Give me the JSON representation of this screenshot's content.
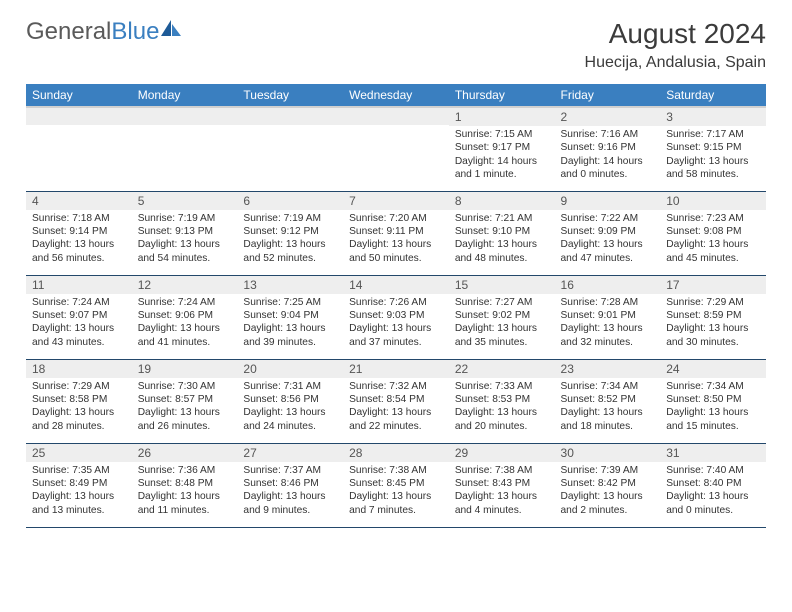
{
  "logo": {
    "part1": "General",
    "part2": "Blue"
  },
  "title": "August 2024",
  "location": "Huecija, Andalusia, Spain",
  "day_headers": [
    "Sunday",
    "Monday",
    "Tuesday",
    "Wednesday",
    "Thursday",
    "Friday",
    "Saturday"
  ],
  "colors": {
    "header_bg": "#3a7fc0",
    "header_fg": "#ffffff",
    "daynum_bg": "#eeeeee",
    "row_border": "#23486b",
    "text": "#333333"
  },
  "weeks": [
    [
      null,
      null,
      null,
      null,
      {
        "num": "1",
        "sunrise": "Sunrise: 7:15 AM",
        "sunset": "Sunset: 9:17 PM",
        "daylight": "Daylight: 14 hours and 1 minute."
      },
      {
        "num": "2",
        "sunrise": "Sunrise: 7:16 AM",
        "sunset": "Sunset: 9:16 PM",
        "daylight": "Daylight: 14 hours and 0 minutes."
      },
      {
        "num": "3",
        "sunrise": "Sunrise: 7:17 AM",
        "sunset": "Sunset: 9:15 PM",
        "daylight": "Daylight: 13 hours and 58 minutes."
      }
    ],
    [
      {
        "num": "4",
        "sunrise": "Sunrise: 7:18 AM",
        "sunset": "Sunset: 9:14 PM",
        "daylight": "Daylight: 13 hours and 56 minutes."
      },
      {
        "num": "5",
        "sunrise": "Sunrise: 7:19 AM",
        "sunset": "Sunset: 9:13 PM",
        "daylight": "Daylight: 13 hours and 54 minutes."
      },
      {
        "num": "6",
        "sunrise": "Sunrise: 7:19 AM",
        "sunset": "Sunset: 9:12 PM",
        "daylight": "Daylight: 13 hours and 52 minutes."
      },
      {
        "num": "7",
        "sunrise": "Sunrise: 7:20 AM",
        "sunset": "Sunset: 9:11 PM",
        "daylight": "Daylight: 13 hours and 50 minutes."
      },
      {
        "num": "8",
        "sunrise": "Sunrise: 7:21 AM",
        "sunset": "Sunset: 9:10 PM",
        "daylight": "Daylight: 13 hours and 48 minutes."
      },
      {
        "num": "9",
        "sunrise": "Sunrise: 7:22 AM",
        "sunset": "Sunset: 9:09 PM",
        "daylight": "Daylight: 13 hours and 47 minutes."
      },
      {
        "num": "10",
        "sunrise": "Sunrise: 7:23 AM",
        "sunset": "Sunset: 9:08 PM",
        "daylight": "Daylight: 13 hours and 45 minutes."
      }
    ],
    [
      {
        "num": "11",
        "sunrise": "Sunrise: 7:24 AM",
        "sunset": "Sunset: 9:07 PM",
        "daylight": "Daylight: 13 hours and 43 minutes."
      },
      {
        "num": "12",
        "sunrise": "Sunrise: 7:24 AM",
        "sunset": "Sunset: 9:06 PM",
        "daylight": "Daylight: 13 hours and 41 minutes."
      },
      {
        "num": "13",
        "sunrise": "Sunrise: 7:25 AM",
        "sunset": "Sunset: 9:04 PM",
        "daylight": "Daylight: 13 hours and 39 minutes."
      },
      {
        "num": "14",
        "sunrise": "Sunrise: 7:26 AM",
        "sunset": "Sunset: 9:03 PM",
        "daylight": "Daylight: 13 hours and 37 minutes."
      },
      {
        "num": "15",
        "sunrise": "Sunrise: 7:27 AM",
        "sunset": "Sunset: 9:02 PM",
        "daylight": "Daylight: 13 hours and 35 minutes."
      },
      {
        "num": "16",
        "sunrise": "Sunrise: 7:28 AM",
        "sunset": "Sunset: 9:01 PM",
        "daylight": "Daylight: 13 hours and 32 minutes."
      },
      {
        "num": "17",
        "sunrise": "Sunrise: 7:29 AM",
        "sunset": "Sunset: 8:59 PM",
        "daylight": "Daylight: 13 hours and 30 minutes."
      }
    ],
    [
      {
        "num": "18",
        "sunrise": "Sunrise: 7:29 AM",
        "sunset": "Sunset: 8:58 PM",
        "daylight": "Daylight: 13 hours and 28 minutes."
      },
      {
        "num": "19",
        "sunrise": "Sunrise: 7:30 AM",
        "sunset": "Sunset: 8:57 PM",
        "daylight": "Daylight: 13 hours and 26 minutes."
      },
      {
        "num": "20",
        "sunrise": "Sunrise: 7:31 AM",
        "sunset": "Sunset: 8:56 PM",
        "daylight": "Daylight: 13 hours and 24 minutes."
      },
      {
        "num": "21",
        "sunrise": "Sunrise: 7:32 AM",
        "sunset": "Sunset: 8:54 PM",
        "daylight": "Daylight: 13 hours and 22 minutes."
      },
      {
        "num": "22",
        "sunrise": "Sunrise: 7:33 AM",
        "sunset": "Sunset: 8:53 PM",
        "daylight": "Daylight: 13 hours and 20 minutes."
      },
      {
        "num": "23",
        "sunrise": "Sunrise: 7:34 AM",
        "sunset": "Sunset: 8:52 PM",
        "daylight": "Daylight: 13 hours and 18 minutes."
      },
      {
        "num": "24",
        "sunrise": "Sunrise: 7:34 AM",
        "sunset": "Sunset: 8:50 PM",
        "daylight": "Daylight: 13 hours and 15 minutes."
      }
    ],
    [
      {
        "num": "25",
        "sunrise": "Sunrise: 7:35 AM",
        "sunset": "Sunset: 8:49 PM",
        "daylight": "Daylight: 13 hours and 13 minutes."
      },
      {
        "num": "26",
        "sunrise": "Sunrise: 7:36 AM",
        "sunset": "Sunset: 8:48 PM",
        "daylight": "Daylight: 13 hours and 11 minutes."
      },
      {
        "num": "27",
        "sunrise": "Sunrise: 7:37 AM",
        "sunset": "Sunset: 8:46 PM",
        "daylight": "Daylight: 13 hours and 9 minutes."
      },
      {
        "num": "28",
        "sunrise": "Sunrise: 7:38 AM",
        "sunset": "Sunset: 8:45 PM",
        "daylight": "Daylight: 13 hours and 7 minutes."
      },
      {
        "num": "29",
        "sunrise": "Sunrise: 7:38 AM",
        "sunset": "Sunset: 8:43 PM",
        "daylight": "Daylight: 13 hours and 4 minutes."
      },
      {
        "num": "30",
        "sunrise": "Sunrise: 7:39 AM",
        "sunset": "Sunset: 8:42 PM",
        "daylight": "Daylight: 13 hours and 2 minutes."
      },
      {
        "num": "31",
        "sunrise": "Sunrise: 7:40 AM",
        "sunset": "Sunset: 8:40 PM",
        "daylight": "Daylight: 13 hours and 0 minutes."
      }
    ]
  ]
}
